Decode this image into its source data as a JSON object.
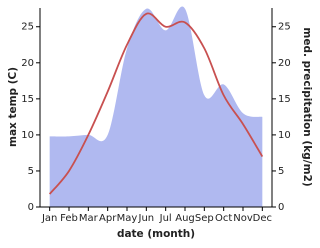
{
  "chart_data": {
    "type": "line-area",
    "categories": [
      "Jan",
      "Feb",
      "Mar",
      "Apr",
      "May",
      "Jun",
      "Jul",
      "Aug",
      "Sep",
      "Oct",
      "Nov",
      "Dec"
    ],
    "x_label": "date (month)",
    "y_label": "max temp (C)",
    "y2_label": "med. precipitation (kg/m2)",
    "ylim": [
      0,
      27.6
    ],
    "yticks": [
      0,
      5,
      10,
      15,
      20,
      25
    ],
    "y2lim": [
      0,
      27.6
    ],
    "y2ticks": [
      0,
      5,
      10,
      15,
      20,
      25
    ],
    "series": [
      {
        "name": "med. precipitation",
        "color": "#b0b9f0",
        "kind": "area",
        "axis": "y2",
        "values": [
          9.8,
          9.8,
          10,
          10,
          22,
          27.5,
          24.5,
          27.5,
          15.5,
          17,
          13,
          12.5
        ]
      },
      {
        "name": "max temp",
        "color": "#c85050",
        "kind": "line",
        "values": [
          1.8,
          5,
          10,
          16,
          22.5,
          26.8,
          25,
          25.6,
          22,
          15.5,
          11.5,
          7
        ]
      }
    ]
  }
}
